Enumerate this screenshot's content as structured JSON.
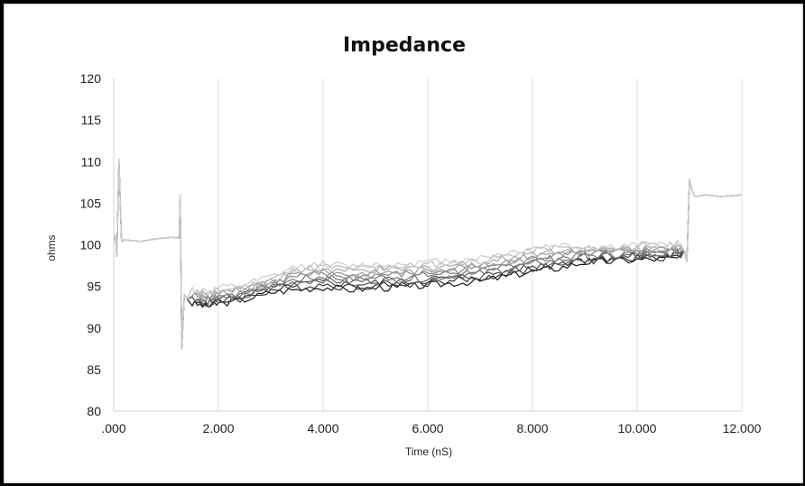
{
  "chart_data": {
    "type": "line",
    "title": "Impedance",
    "xlabel": "Time (nS)",
    "ylabel": "ohms",
    "xlim": [
      0,
      12
    ],
    "ylim": [
      80,
      120
    ],
    "x_ticks": [
      0,
      2,
      4,
      6,
      8,
      10,
      12
    ],
    "x_tick_labels": [
      ".000",
      "2.000",
      "4.000",
      "6.000",
      "8.000",
      "10.000",
      "12.000"
    ],
    "y_ticks": [
      80,
      85,
      90,
      95,
      100,
      105,
      110,
      115,
      120
    ],
    "y_tick_labels": [
      "80",
      "85",
      "90",
      "95",
      "100",
      "105",
      "110",
      "115",
      "120"
    ],
    "grid": "vertical",
    "legend": "none",
    "series_colors": [
      "#1a1a1a",
      "#333333",
      "#4d4d4d",
      "#666666",
      "#777777",
      "#888888",
      "#999999",
      "#aaaaaa",
      "#bbbbbb",
      "#cccccc"
    ],
    "series": [
      {
        "x": [
          0.0,
          0.03,
          0.06,
          0.1,
          0.15,
          0.2,
          0.5,
          0.8,
          1.1,
          1.25,
          1.27,
          1.3,
          1.35,
          1.4,
          1.5,
          1.8,
          2.0,
          2.5,
          3.0,
          3.5,
          4.0,
          4.5,
          5.0,
          5.5,
          6.0,
          6.5,
          7.0,
          7.5,
          8.0,
          8.5,
          9.0,
          9.5,
          10.0,
          10.5,
          10.9,
          10.95,
          11.0,
          11.05,
          11.1,
          11.3,
          11.6,
          12.0
        ],
        "y": [
          100.5,
          101.2,
          98.6,
          110.2,
          100.4,
          100.6,
          100.4,
          100.7,
          100.9,
          100.8,
          106.0,
          87.5,
          94.0,
          93.5,
          93.8,
          93.5,
          93.8,
          94.3,
          95.2,
          96.0,
          96.3,
          96.0,
          96.2,
          96.3,
          96.5,
          96.8,
          97.0,
          97.6,
          98.2,
          98.6,
          98.8,
          98.9,
          99.1,
          99.2,
          99.3,
          98.0,
          107.8,
          106.5,
          105.8,
          106.0,
          105.8,
          106.0
        ]
      }
    ]
  }
}
